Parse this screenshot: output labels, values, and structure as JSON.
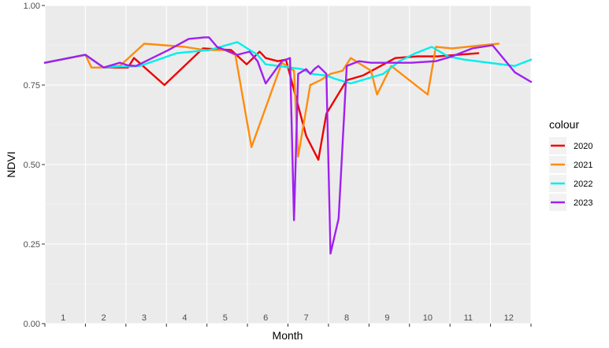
{
  "chart_data": {
    "type": "line",
    "title": "",
    "xlabel": "Month",
    "ylabel": "NDVI",
    "xlim": [
      1,
      13
    ],
    "ylim": [
      0,
      1
    ],
    "y_ticks": [
      "0.00",
      "0.25",
      "0.50",
      "0.75",
      "1.00"
    ],
    "y_tick_values": [
      0,
      0.25,
      0.5,
      0.75,
      1.0
    ],
    "x_categories": [
      "1",
      "2",
      "3",
      "4",
      "5",
      "6",
      "7",
      "8",
      "9",
      "10",
      "11",
      "12"
    ],
    "grid": true,
    "legend": {
      "title": "colour",
      "position": "right"
    },
    "series": [
      {
        "name": "2020",
        "color": "#ee0000",
        "x": [
          1.0,
          2.0,
          2.45,
          3.05,
          3.2,
          3.95,
          4.9,
          5.6,
          5.98,
          6.3,
          6.45,
          6.75,
          6.95,
          7.45,
          7.75,
          7.95,
          8.45,
          8.85,
          9.65,
          10.2,
          10.7,
          11.7
        ],
        "y": [
          0.82,
          0.845,
          0.805,
          0.805,
          0.835,
          0.75,
          0.865,
          0.86,
          0.815,
          0.855,
          0.835,
          0.825,
          0.83,
          0.59,
          0.515,
          0.66,
          0.765,
          0.78,
          0.835,
          0.84,
          0.84,
          0.85
        ]
      },
      {
        "name": "2021",
        "color": "#ff8c0f",
        "x": [
          1.0,
          2.0,
          2.15,
          2.35,
          2.85,
          3.45,
          4.45,
          4.95,
          5.45,
          5.7,
          6.1,
          6.85,
          7.15,
          7.25,
          7.55,
          7.8,
          8.05,
          8.35,
          8.55,
          9.05,
          9.2,
          9.55,
          10.45,
          10.65,
          11.05,
          11.8,
          12.2
        ],
        "y": [
          0.82,
          0.845,
          0.805,
          0.805,
          0.81,
          0.88,
          0.87,
          0.86,
          0.86,
          0.845,
          0.555,
          0.82,
          0.795,
          0.525,
          0.75,
          0.765,
          0.785,
          0.795,
          0.835,
          0.795,
          0.72,
          0.81,
          0.72,
          0.87,
          0.865,
          0.875,
          0.88
        ]
      },
      {
        "name": "2022",
        "color": "#00eeee",
        "x": [
          1.0,
          2.0,
          2.45,
          2.85,
          3.05,
          3.35,
          4.25,
          5.05,
          5.75,
          6.25,
          6.45,
          7.05,
          7.35,
          7.6,
          7.95,
          8.15,
          8.55,
          9.35,
          9.75,
          10.15,
          10.55,
          10.95,
          11.35,
          12.6,
          13.0
        ],
        "y": [
          0.82,
          0.845,
          0.805,
          0.808,
          0.808,
          0.81,
          0.85,
          0.86,
          0.885,
          0.845,
          0.815,
          0.805,
          0.8,
          0.785,
          0.78,
          0.77,
          0.755,
          0.785,
          0.825,
          0.85,
          0.87,
          0.84,
          0.83,
          0.81,
          0.83
        ]
      },
      {
        "name": "2023",
        "color": "#a020f0",
        "x": [
          1.0,
          2.0,
          2.45,
          2.85,
          3.05,
          3.25,
          4.05,
          4.55,
          4.95,
          5.05,
          5.25,
          5.75,
          6.05,
          6.25,
          6.45,
          6.85,
          7.05,
          7.15,
          7.25,
          7.45,
          7.55,
          7.65,
          7.75,
          7.95,
          8.05,
          8.25,
          8.45,
          8.75,
          9.05,
          9.55,
          10.05,
          10.65,
          11.05,
          11.55,
          12.05,
          12.6,
          13.0
        ],
        "y": [
          0.82,
          0.845,
          0.805,
          0.82,
          0.812,
          0.81,
          0.86,
          0.895,
          0.9,
          0.9,
          0.87,
          0.845,
          0.855,
          0.825,
          0.755,
          0.825,
          0.835,
          0.325,
          0.785,
          0.8,
          0.785,
          0.8,
          0.81,
          0.785,
          0.22,
          0.33,
          0.81,
          0.825,
          0.82,
          0.82,
          0.82,
          0.825,
          0.84,
          0.865,
          0.875,
          0.79,
          0.76
        ]
      }
    ]
  }
}
